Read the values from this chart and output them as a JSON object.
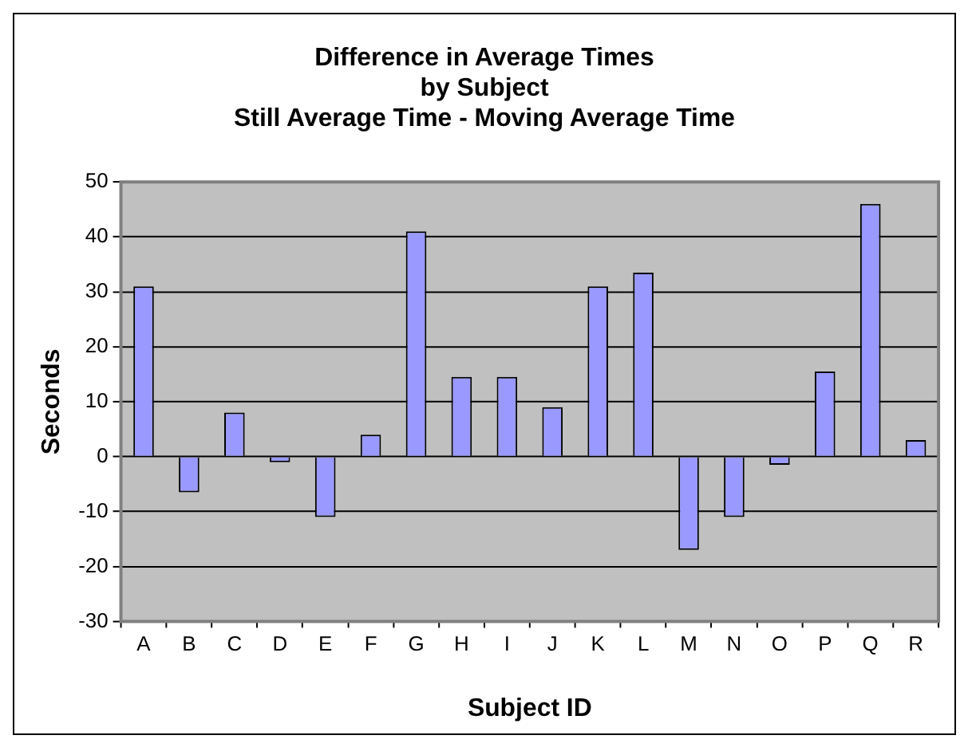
{
  "chart_data": {
    "type": "bar",
    "title": "Difference in Average Times\nby Subject\nStill Average Time - Moving Average Time",
    "xlabel": "Subject ID",
    "ylabel": "Seconds",
    "categories": [
      "A",
      "B",
      "C",
      "D",
      "E",
      "F",
      "G",
      "H",
      "I",
      "J",
      "K",
      "L",
      "M",
      "N",
      "O",
      "P",
      "Q",
      "R"
    ],
    "values": [
      31,
      -6.5,
      8,
      -1,
      -11,
      4,
      41,
      14.5,
      14.5,
      9,
      31,
      33.5,
      -17,
      -11,
      -1.5,
      15.5,
      46,
      3
    ],
    "color": "#9999ff",
    "ylim": [
      -30,
      50
    ],
    "yticks": [
      -30,
      -20,
      -10,
      0,
      10,
      20,
      30,
      40,
      50
    ],
    "grid": "y",
    "legend": false
  }
}
